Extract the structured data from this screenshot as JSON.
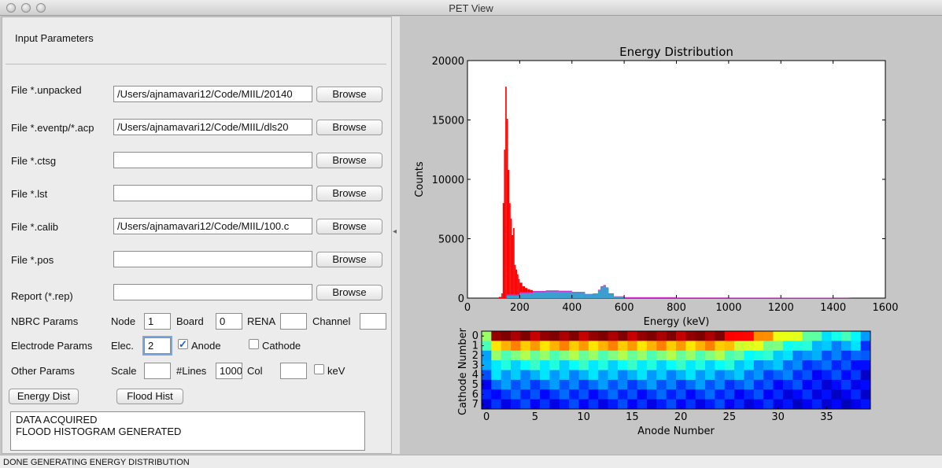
{
  "window": {
    "title": "PET View"
  },
  "left": {
    "section_title": "Input Parameters",
    "files": [
      {
        "label": "File *.unpacked",
        "value": "/Users/ajnamavari12/Code/MIIL/20140",
        "button": "Browse"
      },
      {
        "label": "File *.eventp/*.acp",
        "value": "/Users/ajnamavari12/Code/MIIL/dls20",
        "button": "Browse"
      },
      {
        "label": "File *.ctsg",
        "value": "",
        "button": "Browse"
      },
      {
        "label": "File *.lst",
        "value": "",
        "button": "Browse"
      },
      {
        "label": "File *.calib",
        "value": "/Users/ajnamavari12/Code/MIIL/100.c",
        "button": "Browse"
      },
      {
        "label": "File *.pos",
        "value": "",
        "button": "Browse"
      },
      {
        "label": "Report (*.rep)",
        "value": "",
        "button": "Browse"
      }
    ],
    "nbrc": {
      "label": "NBRC Params",
      "node_label": "Node",
      "node": "1",
      "board_label": "Board",
      "board": "0",
      "rena_label": "RENA",
      "rena": "",
      "channel_label": "Channel",
      "channel": ""
    },
    "electrode": {
      "label": "Electrode Params",
      "elec_label": "Elec.",
      "elec": "2",
      "anode_label": "Anode",
      "anode_checked": true,
      "cathode_label": "Cathode",
      "cathode_checked": false
    },
    "other": {
      "label": "Other Params",
      "scale_label": "Scale",
      "scale": "",
      "lines_label": "#Lines",
      "lines": "1000",
      "col_label": "Col",
      "col": "",
      "kev_label": "keV",
      "kev_checked": false
    },
    "energy_button": "Energy Dist",
    "flood_button": "Flood Hist",
    "log": [
      "DATA ACQUIRED",
      "FLOOD HISTOGRAM GENERATED"
    ]
  },
  "status": "DONE GENERATING ENERGY DISTRIBUTION",
  "chart_data": [
    {
      "type": "bar",
      "title": "Energy Distribution",
      "xlabel": "Energy (keV)",
      "ylabel": "Counts",
      "xlim": [
        0,
        1600
      ],
      "ylim": [
        0,
        20000
      ],
      "xticks": [
        "0",
        "200",
        "400",
        "600",
        "800",
        "1000",
        "1200",
        "1400",
        "1600"
      ],
      "yticks": [
        "0",
        "5000",
        "10000",
        "15000",
        "20000"
      ],
      "series": [
        {
          "color": "#ff0000",
          "x": [
            110,
            120,
            130,
            135,
            140,
            145,
            150,
            155,
            160,
            165,
            170,
            175,
            180,
            185,
            190,
            195,
            200,
            210,
            220,
            230,
            240,
            250,
            260,
            270,
            280,
            290,
            300,
            320,
            340,
            360,
            380,
            400,
            420,
            440,
            460,
            480,
            500,
            510,
            520,
            530,
            540,
            560,
            600,
            700,
            800,
            900,
            1000
          ],
          "values": [
            0,
            100,
            400,
            8000,
            12500,
            17800,
            15100,
            10800,
            8000,
            6700,
            5300,
            5900,
            2800,
            2400,
            2000,
            1600,
            1300,
            1000,
            850,
            750,
            680,
            600,
            560,
            520,
            500,
            480,
            460,
            430,
            410,
            390,
            370,
            330,
            300,
            280,
            300,
            380,
            700,
            900,
            950,
            800,
            400,
            100,
            60,
            40,
            30,
            20,
            0
          ]
        },
        {
          "color": "#cc33cc",
          "x": [
            130,
            150,
            200,
            250,
            300,
            350,
            400,
            450,
            480,
            500,
            510,
            520,
            530,
            540,
            560,
            600,
            800,
            1000,
            1200,
            1400,
            1460,
            1470
          ],
          "values": [
            0,
            300,
            500,
            600,
            650,
            620,
            520,
            350,
            380,
            700,
            1000,
            1100,
            900,
            400,
            150,
            80,
            50,
            40,
            30,
            20,
            10,
            0
          ]
        },
        {
          "color": "#3aa0d0",
          "x": [
            130,
            150,
            200,
            250,
            300,
            350,
            400,
            450,
            480,
            500,
            510,
            520,
            530,
            540,
            560,
            600
          ],
          "values": [
            0,
            200,
            400,
            500,
            550,
            520,
            450,
            320,
            350,
            650,
            950,
            1050,
            850,
            350,
            120,
            60
          ]
        }
      ]
    },
    {
      "type": "heatmap",
      "xlabel": "Anode Number",
      "ylabel": "Cathode Number",
      "xticks": [
        "0",
        "5",
        "10",
        "15",
        "20",
        "25",
        "30",
        "35"
      ],
      "yticks": [
        "0",
        "1",
        "2",
        "3",
        "4",
        "5",
        "6",
        "7"
      ],
      "cols": 40,
      "rows": 8,
      "row_profile": [
        0.9,
        0.62,
        0.42,
        0.3,
        0.22,
        0.15,
        0.1,
        0.07
      ],
      "hot_cols_end": 24
    }
  ]
}
